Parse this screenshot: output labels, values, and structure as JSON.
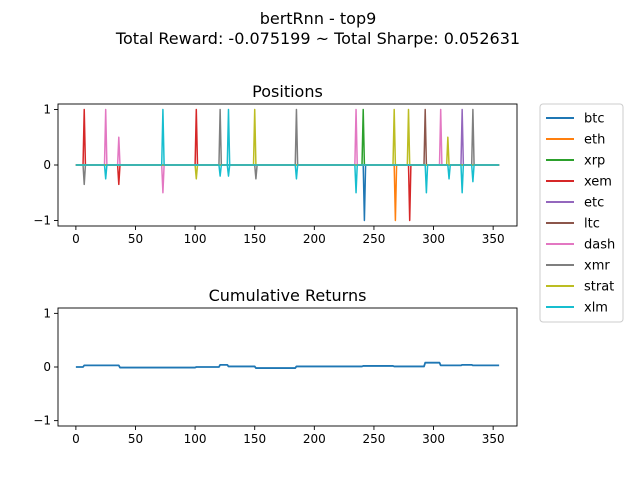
{
  "figure": {
    "title_line1": "bertRnn - top9",
    "title_line2": "Total Reward: -0.075199 ~ Total Sharpe: 0.052631"
  },
  "legend": {
    "placement": "outside-right-top",
    "entries": [
      {
        "name": "btc",
        "color": "#1f77b4"
      },
      {
        "name": "eth",
        "color": "#ff7f0e"
      },
      {
        "name": "xrp",
        "color": "#2ca02c"
      },
      {
        "name": "xem",
        "color": "#d62728"
      },
      {
        "name": "etc",
        "color": "#9467bd"
      },
      {
        "name": "ltc",
        "color": "#8c564b"
      },
      {
        "name": "dash",
        "color": "#e377c2"
      },
      {
        "name": "xmr",
        "color": "#7f7f7f"
      },
      {
        "name": "strat",
        "color": "#bcbd22"
      },
      {
        "name": "xlm",
        "color": "#17becf"
      }
    ]
  },
  "chart_data": [
    {
      "type": "line",
      "title": "Positions",
      "xlabel": "",
      "ylabel": "",
      "xlim": [
        -15,
        370
      ],
      "ylim": [
        -1.1,
        1.1
      ],
      "xticks": [
        0,
        50,
        100,
        150,
        200,
        250,
        300,
        350
      ],
      "yticks": [
        -1,
        0,
        1
      ],
      "x_range": [
        0,
        355
      ],
      "series": [
        {
          "name": "btc",
          "color": "#1f77b4",
          "spikes": [
            [
              242,
              -1.0
            ]
          ]
        },
        {
          "name": "eth",
          "color": "#ff7f0e",
          "spikes": [
            [
              268,
              -1.0
            ]
          ]
        },
        {
          "name": "xrp",
          "color": "#2ca02c",
          "spikes": [
            [
              241,
              1.0
            ]
          ]
        },
        {
          "name": "xem",
          "color": "#d62728",
          "spikes": [
            [
              7,
              1.0
            ],
            [
              36,
              -0.35
            ],
            [
              101,
              1.0
            ],
            [
              280,
              -1.0
            ]
          ]
        },
        {
          "name": "etc",
          "color": "#9467bd",
          "spikes": [
            [
              324,
              1.0
            ]
          ]
        },
        {
          "name": "ltc",
          "color": "#8c564b",
          "spikes": [
            [
              293,
              1.0
            ]
          ]
        },
        {
          "name": "dash",
          "color": "#e377c2",
          "spikes": [
            [
              25,
              1.0
            ],
            [
              36,
              0.5
            ],
            [
              73,
              -0.5
            ],
            [
              235,
              1.0
            ],
            [
              306,
              1.0
            ]
          ]
        },
        {
          "name": "xmr",
          "color": "#7f7f7f",
          "spikes": [
            [
              7,
              -0.35
            ],
            [
              121,
              1.0
            ],
            [
              151,
              -0.25
            ],
            [
              185,
              1.0
            ],
            [
              333,
              1.0
            ]
          ]
        },
        {
          "name": "strat",
          "color": "#bcbd22",
          "spikes": [
            [
              101,
              -0.25
            ],
            [
              150,
              1.0
            ],
            [
              267,
              1.0
            ],
            [
              279,
              1.0
            ],
            [
              312,
              0.5
            ]
          ]
        },
        {
          "name": "xlm",
          "color": "#17becf",
          "spikes": [
            [
              25,
              -0.25
            ],
            [
              73,
              1.0
            ],
            [
              121,
              -0.2
            ],
            [
              128,
              1.0
            ],
            [
              128,
              -0.2
            ],
            [
              185,
              -0.25
            ],
            [
              235,
              -0.5
            ],
            [
              294,
              -0.5
            ],
            [
              313,
              -0.25
            ],
            [
              324,
              -0.5
            ],
            [
              333,
              -0.3
            ]
          ]
        }
      ]
    },
    {
      "type": "line",
      "title": "Cumulative Returns",
      "xlabel": "",
      "ylabel": "",
      "xlim": [
        -15,
        370
      ],
      "ylim": [
        -1.1,
        1.1
      ],
      "xticks": [
        0,
        50,
        100,
        150,
        200,
        250,
        300,
        350
      ],
      "yticks": [
        -1,
        0,
        1
      ],
      "series": [
        {
          "name": "cumulative_returns",
          "color": "#1f77b4",
          "x": [
            0,
            6,
            7,
            36,
            37,
            100,
            101,
            120,
            121,
            127,
            128,
            150,
            151,
            184,
            185,
            240,
            241,
            266,
            267,
            292,
            293,
            305,
            306,
            323,
            324,
            332,
            333,
            355
          ],
          "y": [
            0.0,
            0.0,
            0.03,
            0.03,
            -0.01,
            -0.01,
            0.0,
            0.0,
            0.04,
            0.04,
            0.01,
            0.01,
            -0.02,
            -0.02,
            0.01,
            0.01,
            0.02,
            0.02,
            0.01,
            0.01,
            0.08,
            0.08,
            0.03,
            0.03,
            0.04,
            0.04,
            0.03,
            0.03
          ]
        }
      ]
    }
  ]
}
